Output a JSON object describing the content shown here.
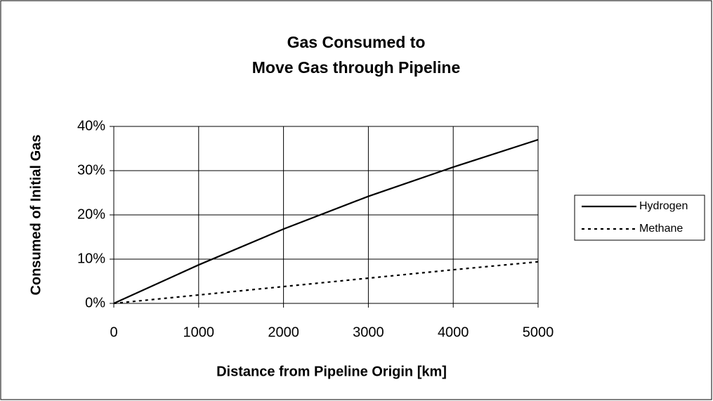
{
  "chart_data": {
    "type": "line",
    "title": [
      "Gas Consumed to",
      "Move Gas through Pipeline"
    ],
    "x_label": "Distance from Pipeline Origin [km]",
    "y_label": "Consumed of Initial Gas",
    "x": [
      0,
      1000,
      2000,
      3000,
      4000,
      5000
    ],
    "series": [
      {
        "name": "Hydrogen",
        "color": "#000000",
        "style": "solid",
        "values": [
          0,
          8.7,
          16.8,
          24.2,
          30.8,
          37
        ]
      },
      {
        "name": "Methane",
        "color": "#000000",
        "style": "dotted",
        "values": [
          0,
          1.9,
          3.8,
          5.7,
          7.6,
          9.4
        ]
      }
    ],
    "xlim": [
      0,
      5000
    ],
    "xticks": [
      0,
      1000,
      2000,
      3000,
      4000,
      5000
    ],
    "ylim": [
      0,
      40
    ],
    "yticks": [
      {
        "value": 0,
        "label": "0%"
      },
      {
        "value": 10,
        "label": "10%"
      },
      {
        "value": 20,
        "label": "20%"
      },
      {
        "value": 30,
        "label": "30%"
      },
      {
        "value": 40,
        "label": "40%"
      }
    ],
    "grid": true,
    "legend": "right"
  }
}
